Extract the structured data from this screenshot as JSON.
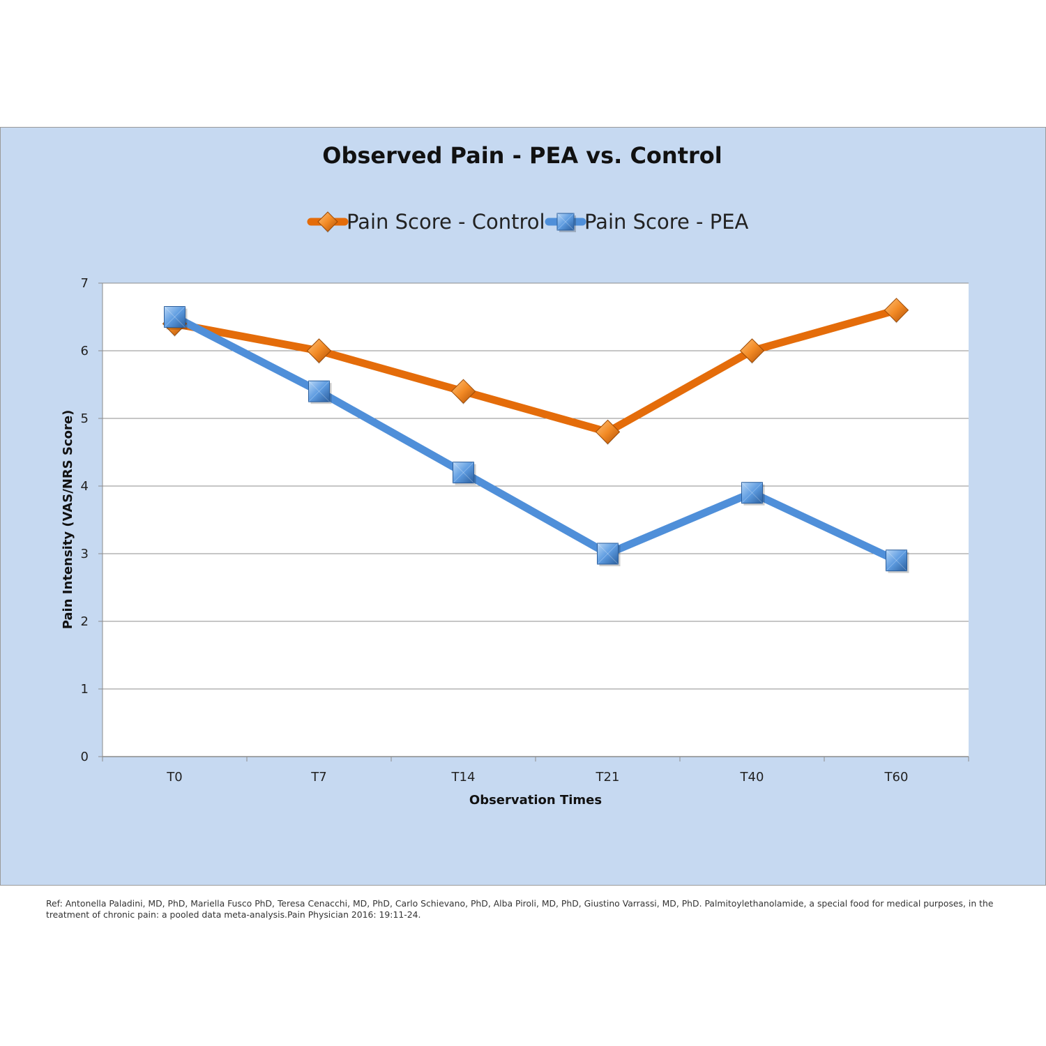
{
  "reference": "Ref: Antonella Paladini, MD, PhD, Mariella Fusco PhD, Teresa Cenacchi, MD, PhD, Carlo Schievano, PhD, Alba Piroli, MD, PhD, Giustino Varrassi, MD, PhD. Palmitoylethanolamide, a special food for medical purposes, in the treatment of chronic pain: a pooled data meta-analysis.Pain Physician 2016: 19:11-24.",
  "colors": {
    "background": "#c6d9f1",
    "plot_area": "#ffffff",
    "control": "#e46c0a",
    "pea": "#4f8fd9"
  },
  "chart_data": {
    "type": "line",
    "title": "Observed Pain - PEA vs. Control",
    "xlabel": "Observation Times",
    "ylabel": "Pain Intensity (VAS/NRS Score)",
    "categories": [
      "T0",
      "T7",
      "T14",
      "T21",
      "T40",
      "T60"
    ],
    "ylim": [
      0,
      7
    ],
    "yticks": [
      0,
      1,
      2,
      3,
      4,
      5,
      6,
      7
    ],
    "grid": true,
    "legend": "top",
    "series": [
      {
        "name": "Pain Score - Control",
        "marker": "diamond",
        "color": "#e46c0a",
        "values": [
          6.4,
          6.0,
          5.4,
          4.8,
          6.0,
          6.6
        ]
      },
      {
        "name": "Pain Score - PEA",
        "marker": "square",
        "color": "#4f8fd9",
        "values": [
          6.5,
          5.4,
          4.2,
          3.0,
          3.9,
          2.9
        ]
      }
    ]
  }
}
